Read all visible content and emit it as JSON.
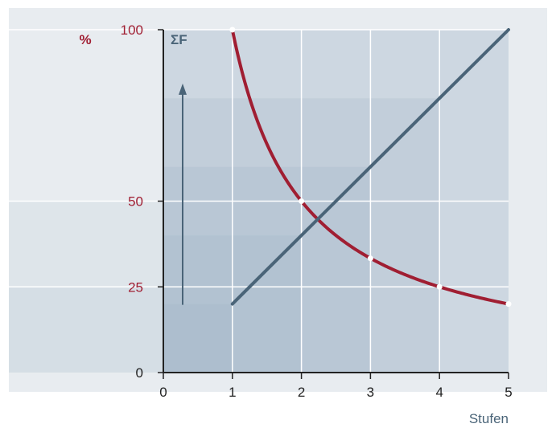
{
  "chart_data": {
    "type": "line",
    "x_ticks": [
      "0",
      "1",
      "2",
      "3",
      "4",
      "5"
    ],
    "y_ticks": [
      "0",
      "25",
      "50",
      "100"
    ],
    "xlabel": "Stufen",
    "y_unit_percent": "%",
    "y_unit_sum": "ΣF",
    "xlim": [
      0,
      5
    ],
    "ylim": [
      0,
      100
    ],
    "grid": true,
    "series": [
      {
        "x": [
          1,
          2,
          3,
          4,
          5
        ],
        "y": [
          100,
          50,
          33.3,
          25,
          20
        ],
        "color": "#a01e32",
        "curve": "hyperbolic"
      },
      {
        "x": [
          1,
          5
        ],
        "y": [
          20,
          100
        ],
        "color": "#4a6478",
        "curve": "linear"
      }
    ],
    "shaded_steps": [
      {
        "x": 1,
        "y": 20
      },
      {
        "x": 2,
        "y": 40
      },
      {
        "x": 3,
        "y": 60
      },
      {
        "x": 4,
        "y": 80
      },
      {
        "x": 5,
        "y": 100
      }
    ],
    "arrow": "up",
    "colors": {
      "background": "#e8ecf0",
      "panel": "#dbe2ea",
      "step_fill": "#9db3c4",
      "grid": "#ffffff",
      "percent_color": "#a01e32",
      "sum_color": "#4a6478",
      "tick_color": "#222222",
      "axis_color": "#222222"
    }
  }
}
